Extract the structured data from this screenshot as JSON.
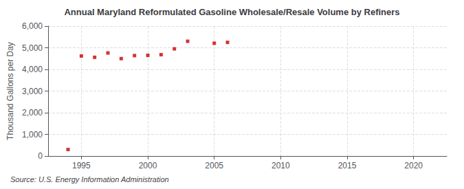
{
  "chart_data": {
    "type": "scatter",
    "title": "Annual Maryland Reformulated Gasoline Wholesale/Resale Volume by Refiners",
    "ylabel": "Thousand Gallons per Day",
    "source": "Source: U.S. Energy Information Administration",
    "x": [
      1994,
      1995,
      1996,
      1997,
      1998,
      1999,
      2000,
      2001,
      2002,
      2003,
      2005,
      2006
    ],
    "values": [
      300,
      4620,
      4560,
      4760,
      4500,
      4640,
      4650,
      4680,
      4950,
      5300,
      5210,
      5250
    ],
    "color": "#cc0000",
    "marker": "square",
    "xlim": [
      1992.5,
      2022.5
    ],
    "xticks": [
      1995,
      2000,
      2005,
      2010,
      2015,
      2020
    ],
    "ylim": [
      0,
      6000
    ],
    "yticks": [
      0,
      {
        "value": 1000,
        "label": "1,000"
      },
      {
        "value": 2000,
        "label": "2,000"
      },
      {
        "value": 3000,
        "label": "3,000"
      },
      {
        "value": 4000,
        "label": "4,000"
      },
      {
        "value": 5000,
        "label": "5,000"
      },
      {
        "value": 6000,
        "label": "6,000"
      }
    ],
    "grid": true
  }
}
